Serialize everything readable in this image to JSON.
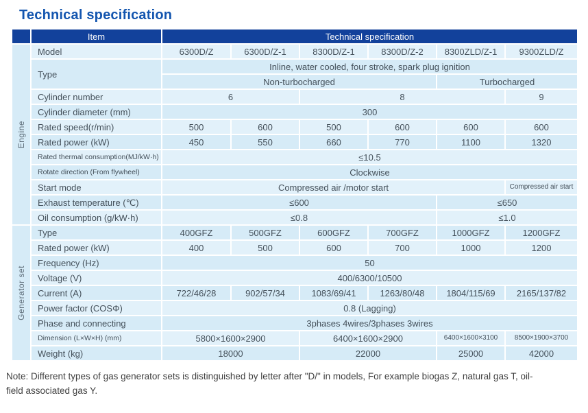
{
  "title": "Technical specification",
  "header": {
    "item": "Item",
    "spec": "Technical specification"
  },
  "colors": {
    "header_bg": "#12419b",
    "title_blue": "#1355af",
    "row_light": "#e2f1fa",
    "row_shaded": "#d6ebf7",
    "cell_text": "#44505a"
  },
  "sections": [
    {
      "label": "Engine",
      "rows": [
        {
          "label": "Model",
          "subrows": [
            [
              {
                "text": "6300D/Z",
                "span": 1
              },
              {
                "text": "6300D/Z-1",
                "span": 1
              },
              {
                "text": "8300D/Z-1",
                "span": 1
              },
              {
                "text": "8300D/Z-2",
                "span": 1
              },
              {
                "text": "8300ZLD/Z-1",
                "span": 1
              },
              {
                "text": "9300ZLD/Z",
                "span": 1
              }
            ]
          ]
        },
        {
          "label": "Type",
          "subrows": [
            [
              {
                "text": "Inline, water cooled, four stroke, spark plug ignition",
                "span": 6
              }
            ],
            [
              {
                "text": "Non-turbocharged",
                "span": 4
              },
              {
                "text": "Turbocharged",
                "span": 2
              }
            ]
          ]
        },
        {
          "label": "Cylinder number",
          "subrows": [
            [
              {
                "text": "6",
                "span": 2
              },
              {
                "text": "8",
                "span": 3
              },
              {
                "text": "9",
                "span": 1
              }
            ]
          ]
        },
        {
          "label": "Cylinder diameter (mm)",
          "subrows": [
            [
              {
                "text": "300",
                "span": 6
              }
            ]
          ]
        },
        {
          "label": "Rated speed(r/min)",
          "subrows": [
            [
              {
                "text": "500",
                "span": 1
              },
              {
                "text": "600",
                "span": 1
              },
              {
                "text": "500",
                "span": 1
              },
              {
                "text": "600",
                "span": 1
              },
              {
                "text": "600",
                "span": 1
              },
              {
                "text": "600",
                "span": 1
              }
            ]
          ]
        },
        {
          "label": "Rated power (kW)",
          "subrows": [
            [
              {
                "text": "450",
                "span": 1
              },
              {
                "text": "550",
                "span": 1
              },
              {
                "text": "660",
                "span": 1
              },
              {
                "text": "770",
                "span": 1
              },
              {
                "text": "1100",
                "span": 1
              },
              {
                "text": "1320",
                "span": 1
              }
            ]
          ]
        },
        {
          "label": "Rated thermal consumption(MJ/kW·h)",
          "small_label": true,
          "subrows": [
            [
              {
                "text": "≤10.5",
                "span": 6
              }
            ]
          ]
        },
        {
          "label": "Rotate direction (From flywheel)",
          "small_label": true,
          "subrows": [
            [
              {
                "text": "Clockwise",
                "span": 6
              }
            ]
          ]
        },
        {
          "label": "Start mode",
          "subrows": [
            [
              {
                "text": "Compressed air /motor start",
                "span": 5
              },
              {
                "text": "Compressed air start",
                "span": 1,
                "small": true
              }
            ]
          ]
        },
        {
          "label": "Exhaust temperature (℃)",
          "subrows": [
            [
              {
                "text": "≤600",
                "span": 4
              },
              {
                "text": "≤650",
                "span": 2
              }
            ]
          ]
        },
        {
          "label": "Oil consumption  (g/kW·h)",
          "subrows": [
            [
              {
                "text": "≤0.8",
                "span": 4
              },
              {
                "text": "≤1.0",
                "span": 2
              }
            ]
          ]
        }
      ]
    },
    {
      "label": "Generator set",
      "rows": [
        {
          "label": "Type",
          "subrows": [
            [
              {
                "text": "400GFZ",
                "span": 1
              },
              {
                "text": "500GFZ",
                "span": 1
              },
              {
                "text": "600GFZ",
                "span": 1
              },
              {
                "text": "700GFZ",
                "span": 1
              },
              {
                "text": "1000GFZ",
                "span": 1
              },
              {
                "text": "1200GFZ",
                "span": 1
              }
            ]
          ]
        },
        {
          "label": "Rated power  (kW)",
          "subrows": [
            [
              {
                "text": "400",
                "span": 1
              },
              {
                "text": "500",
                "span": 1
              },
              {
                "text": "600",
                "span": 1
              },
              {
                "text": "700",
                "span": 1
              },
              {
                "text": "1000",
                "span": 1
              },
              {
                "text": "1200",
                "span": 1
              }
            ]
          ]
        },
        {
          "label": "Frequency  (Hz)",
          "subrows": [
            [
              {
                "text": "50",
                "span": 6
              }
            ]
          ]
        },
        {
          "label": "Voltage  (V)",
          "subrows": [
            [
              {
                "text": "400/6300/10500",
                "span": 6
              }
            ]
          ]
        },
        {
          "label": "Current  (A)",
          "subrows": [
            [
              {
                "text": "722/46/28",
                "span": 1
              },
              {
                "text": "902/57/34",
                "span": 1
              },
              {
                "text": "1083/69/41",
                "span": 1
              },
              {
                "text": "1263/80/48",
                "span": 1
              },
              {
                "text": "1804/115/69",
                "span": 1
              },
              {
                "text": "2165/137/82",
                "span": 1
              }
            ]
          ]
        },
        {
          "label": "Power factor   (COSΦ)",
          "subrows": [
            [
              {
                "text": "0.8 (Lagging)",
                "span": 6
              }
            ]
          ]
        },
        {
          "label": "Phase and connecting",
          "subrows": [
            [
              {
                "text": "3phases 4wires/3phases 3wires",
                "span": 6
              }
            ]
          ]
        },
        {
          "label": "Dimension (L×W×H)  (mm)",
          "small_label": true,
          "subrows": [
            [
              {
                "text": "5800×1600×2900",
                "span": 2
              },
              {
                "text": "6400×1600×2900",
                "span": 2
              },
              {
                "text": "6400×1600×3100",
                "span": 1,
                "small": true
              },
              {
                "text": "8500×1900×3700",
                "span": 1,
                "small": true
              }
            ]
          ]
        },
        {
          "label": "Weight  (kg)",
          "subrows": [
            [
              {
                "text": "18000",
                "span": 2
              },
              {
                "text": "22000",
                "span": 2
              },
              {
                "text": "25000",
                "span": 1
              },
              {
                "text": "42000",
                "span": 1
              }
            ]
          ]
        }
      ]
    }
  ],
  "note": {
    "line1": "Note: Different types of gas generator sets is distinguished by letter after \"D/\" in models, For example biogas Z, natural gas T, oil-",
    "line2": "field associated gas Y."
  }
}
